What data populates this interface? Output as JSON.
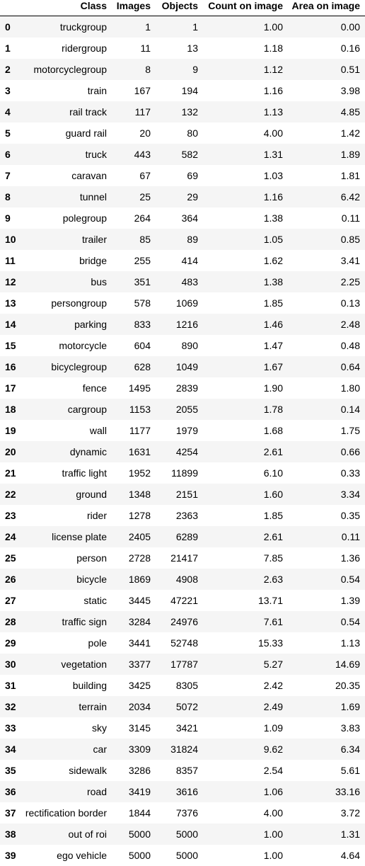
{
  "chart_data": {
    "type": "table",
    "columns": [
      "",
      "Class",
      "Images",
      "Objects",
      "Count on image",
      "Area on image"
    ],
    "rows": [
      [
        "0",
        "truckgroup",
        "1",
        "1",
        "1.00",
        "0.00"
      ],
      [
        "1",
        "ridergroup",
        "11",
        "13",
        "1.18",
        "0.16"
      ],
      [
        "2",
        "motorcyclegroup",
        "8",
        "9",
        "1.12",
        "0.51"
      ],
      [
        "3",
        "train",
        "167",
        "194",
        "1.16",
        "3.98"
      ],
      [
        "4",
        "rail track",
        "117",
        "132",
        "1.13",
        "4.85"
      ],
      [
        "5",
        "guard rail",
        "20",
        "80",
        "4.00",
        "1.42"
      ],
      [
        "6",
        "truck",
        "443",
        "582",
        "1.31",
        "1.89"
      ],
      [
        "7",
        "caravan",
        "67",
        "69",
        "1.03",
        "1.81"
      ],
      [
        "8",
        "tunnel",
        "25",
        "29",
        "1.16",
        "6.42"
      ],
      [
        "9",
        "polegroup",
        "264",
        "364",
        "1.38",
        "0.11"
      ],
      [
        "10",
        "trailer",
        "85",
        "89",
        "1.05",
        "0.85"
      ],
      [
        "11",
        "bridge",
        "255",
        "414",
        "1.62",
        "3.41"
      ],
      [
        "12",
        "bus",
        "351",
        "483",
        "1.38",
        "2.25"
      ],
      [
        "13",
        "persongroup",
        "578",
        "1069",
        "1.85",
        "0.13"
      ],
      [
        "14",
        "parking",
        "833",
        "1216",
        "1.46",
        "2.48"
      ],
      [
        "15",
        "motorcycle",
        "604",
        "890",
        "1.47",
        "0.48"
      ],
      [
        "16",
        "bicyclegroup",
        "628",
        "1049",
        "1.67",
        "0.64"
      ],
      [
        "17",
        "fence",
        "1495",
        "2839",
        "1.90",
        "1.80"
      ],
      [
        "18",
        "cargroup",
        "1153",
        "2055",
        "1.78",
        "0.14"
      ],
      [
        "19",
        "wall",
        "1177",
        "1979",
        "1.68",
        "1.75"
      ],
      [
        "20",
        "dynamic",
        "1631",
        "4254",
        "2.61",
        "0.66"
      ],
      [
        "21",
        "traffic light",
        "1952",
        "11899",
        "6.10",
        "0.33"
      ],
      [
        "22",
        "ground",
        "1348",
        "2151",
        "1.60",
        "3.34"
      ],
      [
        "23",
        "rider",
        "1278",
        "2363",
        "1.85",
        "0.35"
      ],
      [
        "24",
        "license plate",
        "2405",
        "6289",
        "2.61",
        "0.11"
      ],
      [
        "25",
        "person",
        "2728",
        "21417",
        "7.85",
        "1.36"
      ],
      [
        "26",
        "bicycle",
        "1869",
        "4908",
        "2.63",
        "0.54"
      ],
      [
        "27",
        "static",
        "3445",
        "47221",
        "13.71",
        "1.39"
      ],
      [
        "28",
        "traffic sign",
        "3284",
        "24976",
        "7.61",
        "0.54"
      ],
      [
        "29",
        "pole",
        "3441",
        "52748",
        "15.33",
        "1.13"
      ],
      [
        "30",
        "vegetation",
        "3377",
        "17787",
        "5.27",
        "14.69"
      ],
      [
        "31",
        "building",
        "3425",
        "8305",
        "2.42",
        "20.35"
      ],
      [
        "32",
        "terrain",
        "2034",
        "5072",
        "2.49",
        "1.69"
      ],
      [
        "33",
        "sky",
        "3145",
        "3421",
        "1.09",
        "3.83"
      ],
      [
        "34",
        "car",
        "3309",
        "31824",
        "9.62",
        "6.34"
      ],
      [
        "35",
        "sidewalk",
        "3286",
        "8357",
        "2.54",
        "5.61"
      ],
      [
        "36",
        "road",
        "3419",
        "3616",
        "1.06",
        "33.16"
      ],
      [
        "37",
        "rectification border",
        "1844",
        "7376",
        "4.00",
        "3.72"
      ],
      [
        "38",
        "out of roi",
        "5000",
        "5000",
        "1.00",
        "1.31"
      ],
      [
        "39",
        "ego vehicle",
        "5000",
        "5000",
        "1.00",
        "4.64"
      ]
    ]
  }
}
